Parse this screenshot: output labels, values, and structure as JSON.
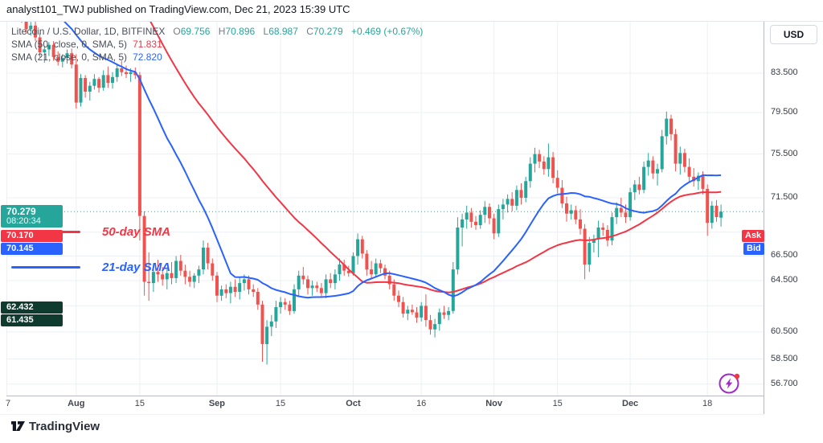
{
  "top_bar": {
    "text": "analyst101_TWJ published on TradingView.com, Dec 21, 2023 15:39 UTC"
  },
  "legend": {
    "symbol": "Litecoin / U.S. Dollar, 1D, BITFINEX",
    "ohlc": {
      "o_l": "O",
      "o": "69.756",
      "h_l": "H",
      "h": "70.896",
      "l_l": "L",
      "l": "68.987",
      "c_l": "C",
      "c": "70.279",
      "change": "+0.469 (+0.67%)"
    },
    "sma50": {
      "label": "SMA (50, close, 0, SMA, 5)",
      "value": "71.831"
    },
    "sma21": {
      "label": "SMA (21, close, 0, SMA, 5)",
      "value": "72.820"
    }
  },
  "annotations": {
    "sma50_label": "50-day SMA",
    "sma21_label": "21-day SMA"
  },
  "right_axis": {
    "currency_button": "USD",
    "last_price": {
      "value": "70.279",
      "countdown": "08:20:34",
      "price": 70.279
    },
    "ask": {
      "label": "Ask",
      "value": "70.170",
      "price": 70.17
    },
    "bid": {
      "label": "Bid",
      "value": "70.145",
      "price": 70.145
    },
    "levels": [
      {
        "value": "62.432",
        "price": 62.432
      },
      {
        "value": "61.435",
        "price": 61.435
      }
    ]
  },
  "footer": {
    "brand": "TradingView"
  },
  "colors": {
    "up": "#26A69A",
    "down": "#EF5350",
    "sma50": "#F23645",
    "sma21": "#2962FF",
    "ask_red": "#F23645",
    "bid_blue": "#2962FF",
    "last_badge": "#26A69A",
    "level_badge": "#0E3B2E",
    "flash_purple": "#A12BC7",
    "alert_dot": "#F23645"
  },
  "chart_data": {
    "type": "candlestick",
    "title": "Litecoin / U.S. Dollar",
    "timeframe": "1D",
    "exchange": "BITFINEX",
    "scale": "log",
    "current_price": 70.279,
    "legend_position": "top-left",
    "grid": true,
    "y_ticks": [
      {
        "label": "83.500",
        "price": 83.5
      },
      {
        "label": "79.500",
        "price": 79.5
      },
      {
        "label": "75.500",
        "price": 75.5
      },
      {
        "label": "71.500",
        "price": 71.5
      },
      {
        "price": 68.5
      },
      {
        "label": "66.500",
        "price": 66.5
      },
      {
        "label": "64.500",
        "price": 64.5
      },
      {
        "price": 62.5
      },
      {
        "label": "60.500",
        "price": 60.5
      },
      {
        "label": "58.500",
        "price": 58.5
      },
      {
        "label": "56.700",
        "price": 56.7
      }
    ],
    "x_ticks": [
      {
        "label": "7",
        "day": -3
      },
      {
        "label": "Aug",
        "day": 12,
        "major": true
      },
      {
        "label": "15",
        "day": 26
      },
      {
        "label": "Sep",
        "day": 43,
        "major": true
      },
      {
        "label": "15",
        "day": 57
      },
      {
        "label": "Oct",
        "day": 73,
        "major": true
      },
      {
        "label": "16",
        "day": 88
      },
      {
        "label": "Nov",
        "day": 104,
        "major": true
      },
      {
        "label": "15",
        "day": 118
      },
      {
        "label": "Dec",
        "day": 134,
        "major": true
      },
      {
        "label": "18",
        "day": 151
      }
    ],
    "overlays": [
      {
        "name": "SMA 50",
        "period": 50,
        "color": "#F23645",
        "last": 71.831
      },
      {
        "name": "SMA 21",
        "period": 21,
        "color": "#2962FF",
        "last": 72.82
      }
    ],
    "preroll_closes": [
      85,
      87,
      89,
      88,
      86,
      84,
      80,
      76,
      73,
      72,
      74,
      76,
      78,
      80,
      82,
      85,
      88,
      92,
      96,
      100,
      103,
      106,
      109,
      111,
      112,
      110,
      108,
      109,
      111,
      112,
      111,
      110,
      108,
      106,
      105,
      103,
      101,
      99,
      97,
      95,
      94,
      96,
      93,
      91,
      90,
      89,
      88,
      87,
      88
    ],
    "candles": [
      [
        90.5,
        91.0,
        88.9,
        89.4
      ],
      [
        89.4,
        90.1,
        87.7,
        88.2
      ],
      [
        88.2,
        89.0,
        87.5,
        88.6
      ],
      [
        88.6,
        89.1,
        86.9,
        87.3
      ],
      [
        87.3,
        87.8,
        85.2,
        85.7
      ],
      [
        85.7,
        86.4,
        84.6,
        86.0
      ],
      [
        86.0,
        86.8,
        85.3,
        86.5
      ],
      [
        86.5,
        86.9,
        84.8,
        85.2
      ],
      [
        85.2,
        85.8,
        84.3,
        84.7
      ],
      [
        84.7,
        85.5,
        84.1,
        85.1
      ],
      [
        85.1,
        86.0,
        84.5,
        85.6
      ],
      [
        85.6,
        86.1,
        84.0,
        84.4
      ],
      [
        84.4,
        85.5,
        79.9,
        80.5
      ],
      [
        80.5,
        83.4,
        80.1,
        83.0
      ],
      [
        83.0,
        83.3,
        81.0,
        81.6
      ],
      [
        81.6,
        82.6,
        80.7,
        82.2
      ],
      [
        82.2,
        83.4,
        81.8,
        82.9
      ],
      [
        82.9,
        83.1,
        81.5,
        82.0
      ],
      [
        82.0,
        83.8,
        81.7,
        83.3
      ],
      [
        83.3,
        84.2,
        82.0,
        82.5
      ],
      [
        82.5,
        83.6,
        81.9,
        83.1
      ],
      [
        83.1,
        84.5,
        82.6,
        84.0
      ],
      [
        84.0,
        84.8,
        83.2,
        83.6
      ],
      [
        83.6,
        84.3,
        83.0,
        83.4
      ],
      [
        83.4,
        84.0,
        82.6,
        83.6
      ],
      [
        83.6,
        84.1,
        82.9,
        83.3
      ],
      [
        83.3,
        83.6,
        67.8,
        69.9
      ],
      [
        69.9,
        70.3,
        63.3,
        64.4
      ],
      [
        64.4,
        66.8,
        62.9,
        64.3
      ],
      [
        64.3,
        65.9,
        63.6,
        65.2
      ],
      [
        65.2,
        66.2,
        64.4,
        65.0
      ],
      [
        65.0,
        65.6,
        64.1,
        64.6
      ],
      [
        64.6,
        65.4,
        63.8,
        65.1
      ],
      [
        65.1,
        66.0,
        64.2,
        64.7
      ],
      [
        64.7,
        66.5,
        64.3,
        66.1
      ],
      [
        66.1,
        66.6,
        64.9,
        65.3
      ],
      [
        65.3,
        65.8,
        64.2,
        64.8
      ],
      [
        64.8,
        65.3,
        64.0,
        64.4
      ],
      [
        64.4,
        65.1,
        63.9,
        64.9
      ],
      [
        64.9,
        65.7,
        64.3,
        65.4
      ],
      [
        65.4,
        67.8,
        65.0,
        67.2
      ],
      [
        67.2,
        67.6,
        65.4,
        65.9
      ],
      [
        65.9,
        66.3,
        64.5,
        64.9
      ],
      [
        64.9,
        65.2,
        62.8,
        63.3
      ],
      [
        63.3,
        64.1,
        62.9,
        63.8
      ],
      [
        63.8,
        64.2,
        63.1,
        63.5
      ],
      [
        63.5,
        64.4,
        62.7,
        64.0
      ],
      [
        64.0,
        64.6,
        63.2,
        63.6
      ],
      [
        63.6,
        64.8,
        63.0,
        64.3
      ],
      [
        64.3,
        65.0,
        63.7,
        64.6
      ],
      [
        64.6,
        64.9,
        63.4,
        63.8
      ],
      [
        63.8,
        64.2,
        63.2,
        63.6
      ],
      [
        63.6,
        63.9,
        62.2,
        62.6
      ],
      [
        62.6,
        62.9,
        58.3,
        59.6
      ],
      [
        59.6,
        61.4,
        58.1,
        60.9
      ],
      [
        60.9,
        61.8,
        60.2,
        61.3
      ],
      [
        61.3,
        62.9,
        60.8,
        62.4
      ],
      [
        62.4,
        63.2,
        61.9,
        62.8
      ],
      [
        62.8,
        63.1,
        62.2,
        62.6
      ],
      [
        62.6,
        62.9,
        61.8,
        62.1
      ],
      [
        62.1,
        64.2,
        61.9,
        63.8
      ],
      [
        63.8,
        65.3,
        63.3,
        64.9
      ],
      [
        64.9,
        65.6,
        64.2,
        64.6
      ],
      [
        64.6,
        64.9,
        63.4,
        63.9
      ],
      [
        63.9,
        64.5,
        63.3,
        64.1
      ],
      [
        64.1,
        64.4,
        63.6,
        63.9
      ],
      [
        63.9,
        64.3,
        63.2,
        63.5
      ],
      [
        63.5,
        65.0,
        63.1,
        64.6
      ],
      [
        64.6,
        65.1,
        63.9,
        64.3
      ],
      [
        64.3,
        65.4,
        63.8,
        65.0
      ],
      [
        65.0,
        66.3,
        64.5,
        65.8
      ],
      [
        65.8,
        66.2,
        64.9,
        65.3
      ],
      [
        65.3,
        65.7,
        64.8,
        65.1
      ],
      [
        65.1,
        66.8,
        64.9,
        66.5
      ],
      [
        66.5,
        68.4,
        65.8,
        67.9
      ],
      [
        67.9,
        68.2,
        66.3,
        66.7
      ],
      [
        66.7,
        67.0,
        64.9,
        65.4
      ],
      [
        65.4,
        66.1,
        64.7,
        65.0
      ],
      [
        65.0,
        66.3,
        64.8,
        65.9
      ],
      [
        65.9,
        66.2,
        65.1,
        65.5
      ],
      [
        65.5,
        65.8,
        64.6,
        64.9
      ],
      [
        64.9,
        65.3,
        63.8,
        64.2
      ],
      [
        64.2,
        64.6,
        62.9,
        63.3
      ],
      [
        63.3,
        63.7,
        62.4,
        62.8
      ],
      [
        62.8,
        63.2,
        61.6,
        61.9
      ],
      [
        61.9,
        62.5,
        61.4,
        62.2
      ],
      [
        62.2,
        62.6,
        61.8,
        62.0
      ],
      [
        62.0,
        62.4,
        61.2,
        61.6
      ],
      [
        61.6,
        62.8,
        61.3,
        62.5
      ],
      [
        62.5,
        63.4,
        60.9,
        61.4
      ],
      [
        61.4,
        61.8,
        60.3,
        60.7
      ],
      [
        60.7,
        61.5,
        60.1,
        61.1
      ],
      [
        61.1,
        62.3,
        60.6,
        62.0
      ],
      [
        62.0,
        62.5,
        61.5,
        61.8
      ],
      [
        61.8,
        62.4,
        61.4,
        62.1
      ],
      [
        62.1,
        66.0,
        61.9,
        65.4
      ],
      [
        65.4,
        69.8,
        65.0,
        68.9
      ],
      [
        68.9,
        70.1,
        67.3,
        69.6
      ],
      [
        69.6,
        70.8,
        68.8,
        70.2
      ],
      [
        70.2,
        70.6,
        68.9,
        69.4
      ],
      [
        69.4,
        69.9,
        68.7,
        69.1
      ],
      [
        69.1,
        70.4,
        68.8,
        70.0
      ],
      [
        70.0,
        71.2,
        69.3,
        70.7
      ],
      [
        70.7,
        71.0,
        69.2,
        69.7
      ],
      [
        69.7,
        70.1,
        67.9,
        68.4
      ],
      [
        68.4,
        70.9,
        68.1,
        70.5
      ],
      [
        70.5,
        71.4,
        69.6,
        70.9
      ],
      [
        70.9,
        71.8,
        70.2,
        71.4
      ],
      [
        71.4,
        72.0,
        70.3,
        70.8
      ],
      [
        70.8,
        72.6,
        70.4,
        72.2
      ],
      [
        72.2,
        72.8,
        70.9,
        71.5
      ],
      [
        71.5,
        73.4,
        71.1,
        73.0
      ],
      [
        73.0,
        75.2,
        72.4,
        74.6
      ],
      [
        74.6,
        76.1,
        73.8,
        75.5
      ],
      [
        75.5,
        75.9,
        74.2,
        74.8
      ],
      [
        74.8,
        75.3,
        73.6,
        74.1
      ],
      [
        74.1,
        76.5,
        73.4,
        75.2
      ],
      [
        75.2,
        75.7,
        72.8,
        73.3
      ],
      [
        73.3,
        74.0,
        71.9,
        72.4
      ],
      [
        72.4,
        73.1,
        70.6,
        71.0
      ],
      [
        71.0,
        71.6,
        69.4,
        70.1
      ],
      [
        70.1,
        70.9,
        69.6,
        70.4
      ],
      [
        70.4,
        70.8,
        69.2,
        69.6
      ],
      [
        69.6,
        70.5,
        68.3,
        68.8
      ],
      [
        68.8,
        69.2,
        64.6,
        65.8
      ],
      [
        65.8,
        68.1,
        65.2,
        67.6
      ],
      [
        67.6,
        68.3,
        66.8,
        67.9
      ],
      [
        67.9,
        69.5,
        66.4,
        68.9
      ],
      [
        68.9,
        69.3,
        68.2,
        68.7
      ],
      [
        68.7,
        69.1,
        67.3,
        67.8
      ],
      [
        67.8,
        70.2,
        67.4,
        69.8
      ],
      [
        69.8,
        71.1,
        69.2,
        70.6
      ],
      [
        70.6,
        71.5,
        69.8,
        70.2
      ],
      [
        70.2,
        70.9,
        69.3,
        69.8
      ],
      [
        69.8,
        72.4,
        69.5,
        72.0
      ],
      [
        72.0,
        73.1,
        71.3,
        72.7
      ],
      [
        72.7,
        73.4,
        71.8,
        72.2
      ],
      [
        72.2,
        74.8,
        71.9,
        74.3
      ],
      [
        74.3,
        75.6,
        73.5,
        74.9
      ],
      [
        74.9,
        75.3,
        73.2,
        73.7
      ],
      [
        73.7,
        74.6,
        72.6,
        74.1
      ],
      [
        74.1,
        77.8,
        73.8,
        77.2
      ],
      [
        77.2,
        79.6,
        76.4,
        78.9
      ],
      [
        78.9,
        79.3,
        76.8,
        77.4
      ],
      [
        77.4,
        77.9,
        73.9,
        74.6
      ],
      [
        74.6,
        76.2,
        73.6,
        75.6
      ],
      [
        75.6,
        76.0,
        73.8,
        74.3
      ],
      [
        74.3,
        75.1,
        72.9,
        73.4
      ],
      [
        73.4,
        74.2,
        72.5,
        73.0
      ],
      [
        73.0,
        73.8,
        72.2,
        73.5
      ],
      [
        73.5,
        73.9,
        71.8,
        72.3
      ],
      [
        72.3,
        72.7,
        68.2,
        69.3
      ],
      [
        69.3,
        71.2,
        68.8,
        70.8
      ],
      [
        70.8,
        71.3,
        69.4,
        69.8
      ],
      [
        69.756,
        70.896,
        68.987,
        70.279
      ]
    ]
  }
}
